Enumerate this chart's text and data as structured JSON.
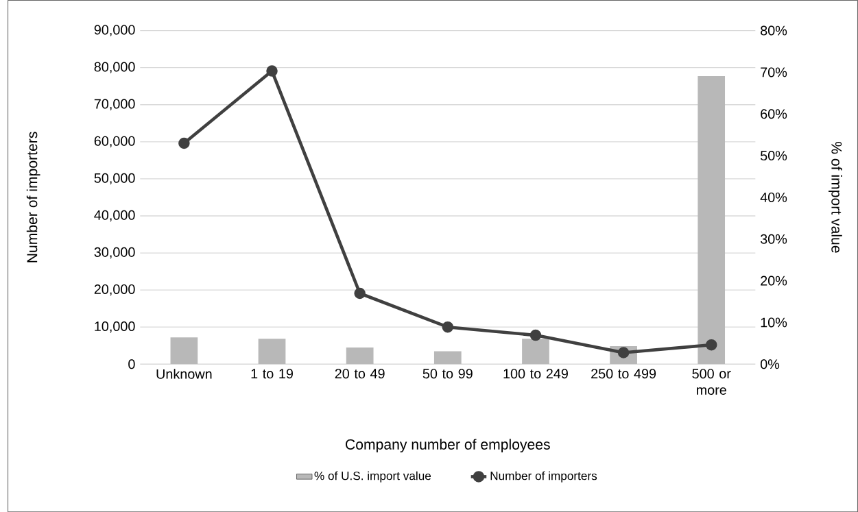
{
  "chart_data": {
    "type": "bar",
    "xlabel": "Company number of employees",
    "ylabel": "Number of importers",
    "y2label": "% of import value",
    "categories": [
      "Unknown",
      "1 to 19",
      "20 to 49",
      "50 to 99",
      "100 to 249",
      "250 to 499",
      "500 or more"
    ],
    "series": [
      {
        "name": "% of U.S. import value",
        "axis": "y2",
        "color": "#b8b8b8",
        "values": [
          6.4,
          6.1,
          4.0,
          3.1,
          6.1,
          4.3,
          69.1
        ]
      },
      {
        "name": "Number of importers",
        "type": "line",
        "color": "#404040",
        "values": [
          59600,
          79100,
          19100,
          10000,
          7800,
          3100,
          5200
        ]
      }
    ],
    "ylim": [
      0,
      90000
    ],
    "yticks": [
      {
        "value": 0,
        "label": "0"
      },
      {
        "value": 10000,
        "label": "10,000"
      },
      {
        "value": 20000,
        "label": "20,000"
      },
      {
        "value": 30000,
        "label": "30,000"
      },
      {
        "value": 40000,
        "label": "40,000"
      },
      {
        "value": 50000,
        "label": "50,000"
      },
      {
        "value": 60000,
        "label": "60,000"
      },
      {
        "value": 70000,
        "label": "70,000"
      },
      {
        "value": 80000,
        "label": "80,000"
      },
      {
        "value": 90000,
        "label": "90,000"
      }
    ],
    "y2lim": [
      0,
      80
    ],
    "y2ticks": [
      {
        "value": 0,
        "label": "0%"
      },
      {
        "value": 10,
        "label": "10%"
      },
      {
        "value": 20,
        "label": "20%"
      },
      {
        "value": 30,
        "label": "30%"
      },
      {
        "value": 40,
        "label": "40%"
      },
      {
        "value": 50,
        "label": "50%"
      },
      {
        "value": 60,
        "label": "60%"
      },
      {
        "value": 70,
        "label": "70%"
      },
      {
        "value": 80,
        "label": "80%"
      }
    ],
    "grid": "y",
    "legend": "bottom",
    "marker": "circle",
    "line_style": "solid"
  }
}
